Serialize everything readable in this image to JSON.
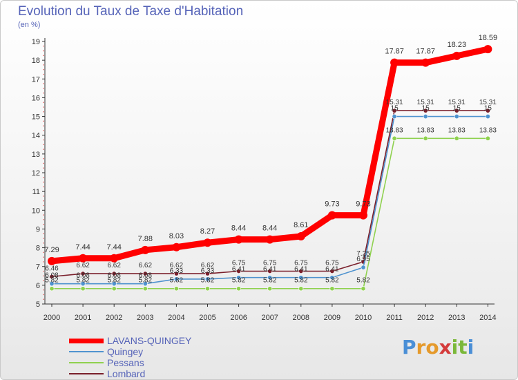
{
  "title": "Evolution du Taux de Taxe d'Habitation",
  "unit": "(en %)",
  "logo": {
    "letters": [
      "P",
      "r",
      "o",
      "x",
      "i",
      "t",
      "i"
    ],
    "colors": [
      "#4a8fd6",
      "#e59a2c",
      "#e59a2c",
      "#d43b3b",
      "#7bb83a",
      "#7bb83a",
      "#4a8fd6"
    ]
  },
  "chart_data": {
    "type": "line",
    "x": [
      2000,
      2001,
      2002,
      2003,
      2004,
      2005,
      2006,
      2007,
      2008,
      2009,
      2010,
      2011,
      2012,
      2013,
      2014
    ],
    "ylim": [
      5,
      19
    ],
    "yticks": [
      5,
      6,
      7,
      8,
      9,
      10,
      11,
      12,
      13,
      14,
      15,
      16,
      17,
      18,
      19
    ],
    "grid": false,
    "legend": "bottom-left",
    "series": [
      {
        "name": "LAVANS-QUINGEY",
        "color": "#ff0000",
        "values": [
          7.29,
          7.44,
          7.44,
          7.88,
          8.03,
          8.27,
          8.44,
          8.44,
          8.61,
          9.73,
          9.73,
          17.87,
          17.87,
          18.23,
          18.59
        ],
        "labels": [
          "7.29",
          "7.44",
          "7.44",
          "7.88",
          "8.03",
          "8.27",
          "8.44",
          "8.44",
          "8.61",
          "9.73",
          "9.73",
          "17.87",
          "17.87",
          "18.23",
          "18.59"
        ]
      },
      {
        "name": "Quingey",
        "color": "#4f93cf",
        "values": [
          6.08,
          6.08,
          6.08,
          6.08,
          6.33,
          6.33,
          6.41,
          6.41,
          6.41,
          6.41,
          6.95,
          15,
          15,
          15,
          15
        ],
        "labels": [
          "6.08",
          "6.08",
          "6.08",
          "6.08",
          "6.33",
          "6.33",
          "6.41",
          "6.41",
          "6.41",
          "6.41",
          "6.95",
          "15",
          "15",
          "15",
          "15"
        ]
      },
      {
        "name": "Pessans",
        "color": "#8fd14f",
        "values": [
          5.82,
          5.82,
          5.82,
          5.82,
          5.82,
          5.82,
          5.82,
          5.82,
          5.82,
          5.82,
          5.82,
          13.83,
          13.83,
          13.83,
          13.83
        ],
        "labels": [
          "5.82",
          "5.82",
          "5.82",
          "5.82",
          "5.82",
          "5.82",
          "5.82",
          "5.82",
          "5.82",
          "5.82",
          "5.82",
          "13.83",
          "13.83",
          "13.83",
          "13.83"
        ]
      },
      {
        "name": "Lombard",
        "color": "#7a1f2b",
        "values": [
          6.46,
          6.62,
          6.62,
          6.62,
          6.62,
          6.62,
          6.75,
          6.75,
          6.75,
          6.75,
          7.25,
          15.31,
          15.31,
          15.31,
          15.31
        ],
        "labels": [
          "6.46",
          "6.62",
          "6.62",
          "6.62",
          "6.62",
          "6.62",
          "6.75",
          "6.75",
          "6.75",
          "6.75",
          "7.25",
          "15.31",
          "15.31",
          "15.31",
          "15.31"
        ]
      }
    ]
  }
}
